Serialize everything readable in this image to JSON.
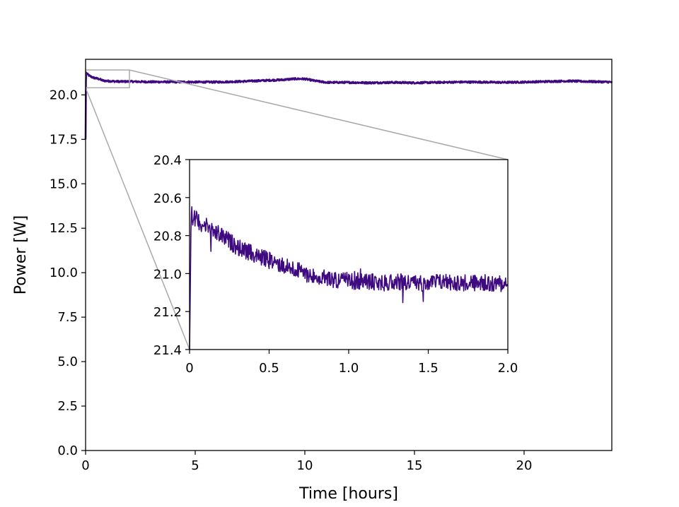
{
  "chart_data": [
    {
      "panel": "main",
      "type": "line",
      "title": "",
      "xlabel": "Time [hours]",
      "ylabel": "Power [W]",
      "xlim": [
        0,
        24
      ],
      "ylim": [
        0,
        22
      ],
      "xticks": [
        0,
        5,
        10,
        15,
        20
      ],
      "xtick_labels": [
        "0",
        "5",
        "10",
        "15",
        "20"
      ],
      "yticks": [
        0,
        2.5,
        5,
        7.5,
        10,
        12.5,
        15,
        17.5,
        20
      ],
      "ytick_labels": [
        "0.0",
        "2.5",
        "5.0",
        "7.5",
        "10.0",
        "12.5",
        "15.0",
        "17.5",
        "20.0"
      ],
      "grid": false,
      "legend": null,
      "series": [
        {
          "color": "#3f0a80",
          "x": [
            0,
            0.02,
            0.05,
            0.1,
            0.2,
            0.4,
            0.6,
            0.8,
            1.0,
            1.5,
            2,
            3,
            4,
            5,
            6,
            7,
            8,
            9,
            9.5,
            10,
            10.5,
            11,
            12,
            13,
            14,
            15,
            16,
            17,
            18,
            19,
            20,
            21,
            22,
            23,
            24
          ],
          "values": [
            17.5,
            21.3,
            21.2,
            21.15,
            21.05,
            20.95,
            20.9,
            20.8,
            20.78,
            20.75,
            20.75,
            20.73,
            20.73,
            20.72,
            20.72,
            20.75,
            20.8,
            20.85,
            20.9,
            20.9,
            20.78,
            20.7,
            20.7,
            20.68,
            20.7,
            20.68,
            20.7,
            20.72,
            20.72,
            20.7,
            20.72,
            20.75,
            20.78,
            20.75,
            20.72
          ]
        }
      ],
      "zoom_box": {
        "x": [
          0,
          2
        ],
        "y": [
          20.4,
          21.4
        ]
      }
    },
    {
      "panel": "inset",
      "type": "line",
      "xlim": [
        0,
        2
      ],
      "ylim": [
        20.4,
        21.4
      ],
      "y_inverted": true,
      "xticks": [
        0,
        0.5,
        1.0,
        1.5,
        2.0
      ],
      "xtick_labels": [
        "0",
        "0.5",
        "1.0",
        "1.5",
        "2.0"
      ],
      "yticks": [
        20.4,
        20.6,
        20.8,
        21.0,
        21.2,
        21.4
      ],
      "ytick_labels": [
        "20.4",
        "20.6",
        "20.8",
        "21.0",
        "21.2",
        "21.4"
      ],
      "grid": false,
      "series": [
        {
          "color": "#3f0a80",
          "x": [
            0,
            0.01,
            0.02,
            0.05,
            0.1,
            0.15,
            0.2,
            0.25,
            0.3,
            0.35,
            0.4,
            0.5,
            0.6,
            0.7,
            0.8,
            0.9,
            1.0,
            1.1,
            1.2,
            1.3,
            1.4,
            1.5,
            1.6,
            1.7,
            1.8,
            1.9,
            2.0
          ],
          "values": [
            21.4,
            20.65,
            20.7,
            20.72,
            20.75,
            20.78,
            20.8,
            20.83,
            20.86,
            20.88,
            20.9,
            20.93,
            20.96,
            20.99,
            21.02,
            21.03,
            21.04,
            21.04,
            21.05,
            21.04,
            21.05,
            21.05,
            21.04,
            21.05,
            21.05,
            21.05,
            21.05
          ],
          "noise": 0.045
        }
      ]
    }
  ]
}
